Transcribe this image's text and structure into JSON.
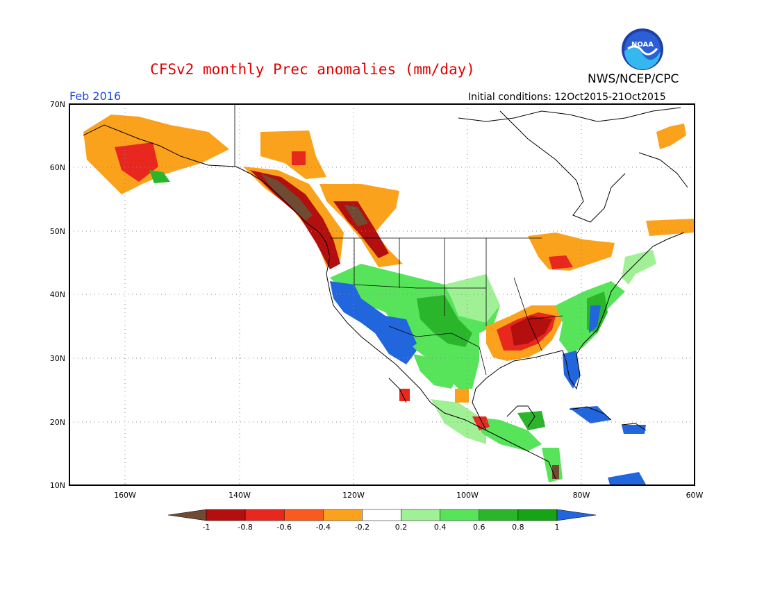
{
  "header": {
    "title": "CFSv2 monthly Prec anomalies (mm/day)",
    "organization": "NWS/NCEP/CPC",
    "valid_month": "Feb 2016",
    "initial_conditions": "Initial conditions: 12Oct2015-21Oct2015",
    "logo_icon": "noaa-logo-icon"
  },
  "map": {
    "region": "North America",
    "lon_range": [
      -172,
      -60
    ],
    "lat_range": [
      10,
      70
    ],
    "lat_labels": [
      "70N",
      "60N",
      "50N",
      "40N",
      "30N",
      "20N",
      "10N"
    ],
    "lon_labels": [
      "160W",
      "140W",
      "120W",
      "100W",
      "80W",
      "60W"
    ],
    "gridlines": "dotted"
  },
  "colorbar": {
    "labels": [
      "-1",
      "-0.8",
      "-0.6",
      "-0.4",
      "-0.2",
      "0.2",
      "0.4",
      "0.6",
      "0.8",
      "1"
    ],
    "colors": [
      "#6e4b32",
      "#b40f0f",
      "#e8281f",
      "#fa5a1e",
      "#fba21c",
      "#ffffff",
      "#a0f096",
      "#57e35a",
      "#2bb52b",
      "#16a316",
      "#2266dd"
    ]
  }
}
